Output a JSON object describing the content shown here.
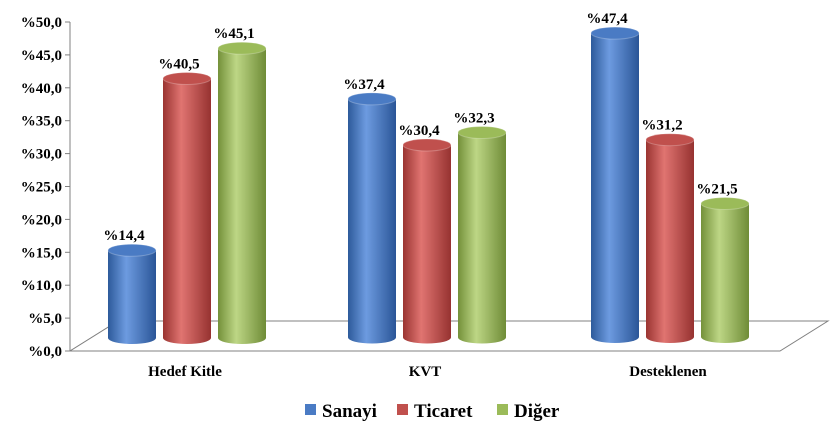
{
  "chart_data": {
    "type": "bar",
    "style": "3d-cylinder",
    "categories": [
      "Hedef Kitle",
      "KVT",
      "Desteklenen"
    ],
    "series": [
      {
        "name": "Sanayi",
        "color": "#4a7bc4",
        "values": [
          14.4,
          37.4,
          47.4
        ],
        "labels": [
          "%14,4",
          "%37,4",
          "%47,4"
        ]
      },
      {
        "name": "Ticaret",
        "color": "#c0504d",
        "values": [
          40.5,
          30.4,
          31.2
        ],
        "labels": [
          "%40,5",
          "%30,4",
          "%31,2"
        ]
      },
      {
        "name": "Diğer",
        "color": "#9bbb59",
        "values": [
          45.1,
          32.3,
          21.5
        ],
        "labels": [
          "%45,1",
          "%32,3",
          "%21,5"
        ]
      }
    ],
    "yticks": [
      "%0,0",
      "%5,0",
      "%10,0",
      "%15,0",
      "%20,0",
      "%25,0",
      "%30,0",
      "%35,0",
      "%40,0",
      "%45,0",
      "%50,0"
    ],
    "ylim": [
      0,
      50
    ],
    "grid": false,
    "legend": "bottom"
  }
}
